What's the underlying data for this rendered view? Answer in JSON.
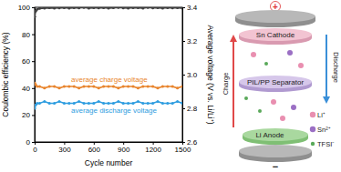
{
  "chart_data": {
    "type": "line",
    "xlabel": "Cycle number",
    "ylabel": "Coulombic efficiency (%)",
    "y2label": "Average voltage (V vs. Li/Li⁺)",
    "x": [
      1,
      10,
      25,
      50,
      100,
      150,
      200,
      250,
      300,
      350,
      400,
      450,
      500,
      550,
      600,
      650,
      700,
      750,
      800,
      850,
      900,
      950,
      1000,
      1050,
      1100,
      1150,
      1200,
      1250,
      1300,
      1350,
      1400,
      1450,
      1500
    ],
    "xlim": [
      0,
      1500
    ],
    "xticks": [
      0,
      300,
      600,
      900,
      1200,
      1500
    ],
    "ylim": [
      0,
      100
    ],
    "yticks": [
      0,
      20,
      40,
      60,
      80,
      100
    ],
    "y2lim": [
      2.6,
      3.4
    ],
    "y2ticks": [
      2.6,
      2.8,
      {
        "value": 3,
        "label": "3.0"
      },
      3.2,
      3.4
    ],
    "series": [
      {
        "color": "#404040",
        "marker": "circle",
        "line_style": "solid",
        "values": [
          93.0,
          97.2,
          98.5,
          99.1,
          99.4,
          99.6,
          99.3,
          99.5,
          99.7,
          99.4,
          99.6,
          99.5,
          99.8,
          99.3,
          99.6,
          99.5,
          99.7,
          99.4,
          99.6,
          99.8,
          99.5,
          99.3,
          99.7,
          99.6,
          99.4,
          99.8,
          99.5,
          99.6,
          99.3,
          99.7,
          99.5,
          99.6,
          99.4
        ]
      },
      {
        "name": "average charge voltage",
        "color": "#e8842c",
        "axis": "y2",
        "marker": "circle",
        "line_style": "solid",
        "values": [
          2.95,
          2.94,
          2.93,
          2.93,
          2.92,
          2.93,
          2.93,
          2.92,
          2.93,
          2.93,
          2.93,
          2.92,
          2.93,
          2.93,
          2.93,
          2.92,
          2.93,
          2.93,
          2.93,
          2.92,
          2.93,
          2.93,
          2.93,
          2.92,
          2.93,
          2.93,
          2.93,
          2.92,
          2.93,
          2.93,
          2.93,
          2.92,
          2.93
        ]
      },
      {
        "name": "average discharge voltage",
        "color": "#2e9de0",
        "axis": "y2",
        "marker": "circle",
        "line_style": "solid",
        "values": [
          2.8,
          2.82,
          2.83,
          2.83,
          2.84,
          2.83,
          2.83,
          2.84,
          2.83,
          2.83,
          2.83,
          2.84,
          2.83,
          2.83,
          2.83,
          2.84,
          2.83,
          2.83,
          2.83,
          2.84,
          2.83,
          2.83,
          2.83,
          2.84,
          2.83,
          2.83,
          2.83,
          2.84,
          2.83,
          2.83,
          2.83,
          2.84,
          2.83
        ]
      }
    ]
  },
  "diagram": {
    "positive": "+",
    "negative": "−",
    "cathode": "Sn Cathode",
    "separator": "PIL/PP Separator",
    "anode": "Li Anode",
    "charge": "Charge",
    "discharge": "Discharge",
    "ions": [
      {
        "label": "Li⁺",
        "color": "#e98fb0"
      },
      {
        "label": "Sn²⁺",
        "color": "#9b6fc4"
      },
      {
        "label": "TFSI⁻",
        "color": "#5aa95a"
      }
    ]
  }
}
